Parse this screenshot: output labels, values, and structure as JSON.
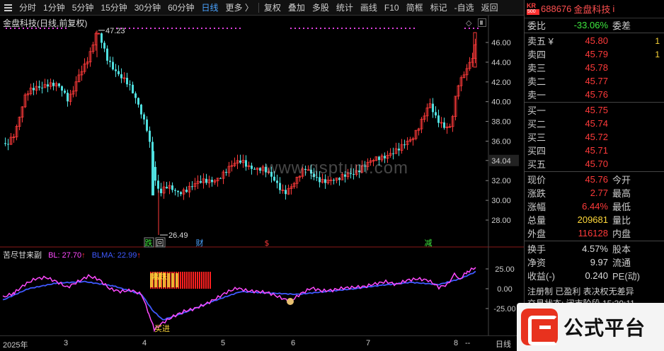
{
  "toolbar": {
    "periods": [
      "分时",
      "1分钟",
      "5分钟",
      "15分钟",
      "30分钟",
      "60分钟",
      "日线",
      "更多 〉"
    ],
    "active_period": "日线",
    "tools": [
      "复权",
      "叠加",
      "多股",
      "统计",
      "画线",
      "F10",
      "简框",
      "标记",
      "-自选",
      "返回"
    ]
  },
  "chart": {
    "title": "金盘科技(日线,前复权)",
    "price_axis": [
      "46.00",
      "44.00",
      "42.00",
      "40.00",
      "38.00",
      "36.00",
      "34.04",
      "32.00",
      "30.00",
      "28.00"
    ],
    "current_price_label": "34.04",
    "high_label": "47.23",
    "low_label": "26.49",
    "events": [
      {
        "text": "跌",
        "color": "#3ee83e"
      },
      {
        "text": "回",
        "color": "#ddd"
      },
      {
        "text": "财",
        "color": "#4aa3ff"
      },
      {
        "text": "$",
        "color": "#ff3a3a"
      },
      {
        "text": "减",
        "color": "#3ee83e"
      }
    ],
    "watermark": "www.gsptum.com",
    "x_labels": [
      "2025年",
      "3",
      "4",
      "5",
      "6",
      "7",
      "8",
      "--"
    ],
    "x_right": "日线"
  },
  "chart_data": [
    {
      "type": "candlestick",
      "title": "金盘科技(日线,前复权)",
      "ylim": [
        26,
        48
      ],
      "max": 47.23,
      "min": 26.49,
      "last": 45.76
    },
    {
      "type": "line",
      "title": "苦尽甘来副",
      "series": [
        {
          "name": "BL",
          "last": 27.7
        },
        {
          "name": "BLMA",
          "last": 22.99
        }
      ],
      "yticks": [
        25.0,
        0.0,
        -25.0
      ]
    }
  ],
  "indicator": {
    "name": "苦尽甘来副",
    "bl_label": "BL: 27.70",
    "blma_label": "BLMA: 22.99",
    "y_axis": [
      "25.00",
      "0.00",
      "-25.00"
    ],
    "annot_top": "嘉跌",
    "annot_bottom": "买进"
  },
  "quote": {
    "badge_top": "KR",
    "badge_bottom": "500",
    "code": "688676",
    "name": "金盘科技",
    "info": "i",
    "weibi_label": "委比",
    "weibi_value": "-33.06%",
    "weicha_label": "委差",
    "asks": [
      {
        "label": "卖五 ¥",
        "price": "45.80",
        "vol": "1"
      },
      {
        "label": "卖四",
        "price": "45.79",
        "vol": "1"
      },
      {
        "label": "卖三",
        "price": "45.78",
        "vol": ""
      },
      {
        "label": "卖二",
        "price": "45.77",
        "vol": ""
      },
      {
        "label": "卖一",
        "price": "45.76",
        "vol": ""
      }
    ],
    "bids": [
      {
        "label": "买一",
        "price": "45.75"
      },
      {
        "label": "买二",
        "price": "45.74"
      },
      {
        "label": "买三",
        "price": "45.72"
      },
      {
        "label": "买四",
        "price": "45.71"
      },
      {
        "label": "买五",
        "price": "45.70"
      }
    ],
    "stats": [
      {
        "label": "现价",
        "value": "45.76",
        "color": "red",
        "label2": "今开"
      },
      {
        "label": "涨跌",
        "value": "2.77",
        "color": "red",
        "label2": "最高"
      },
      {
        "label": "涨幅",
        "value": "6.44%",
        "color": "red",
        "label2": "最低"
      },
      {
        "label": "总量",
        "value": "209681",
        "color": "yellow",
        "label2": "量比"
      },
      {
        "label": "外盘",
        "value": "116128",
        "color": "red",
        "label2": "内盘"
      }
    ],
    "stats2": [
      {
        "label": "换手",
        "value": "4.57%",
        "label2": "股本"
      },
      {
        "label": "净资",
        "value": "9.97",
        "label2": "流通"
      },
      {
        "label": "收益(-)",
        "value": "0.240",
        "label2": "PE(动)"
      }
    ],
    "ticker_line1": "注册制 已盈利 表决权无差异",
    "ticker_line2": "交易状态: 闭市阶段 15:30:11"
  },
  "promo": {
    "text": "公式平台"
  }
}
